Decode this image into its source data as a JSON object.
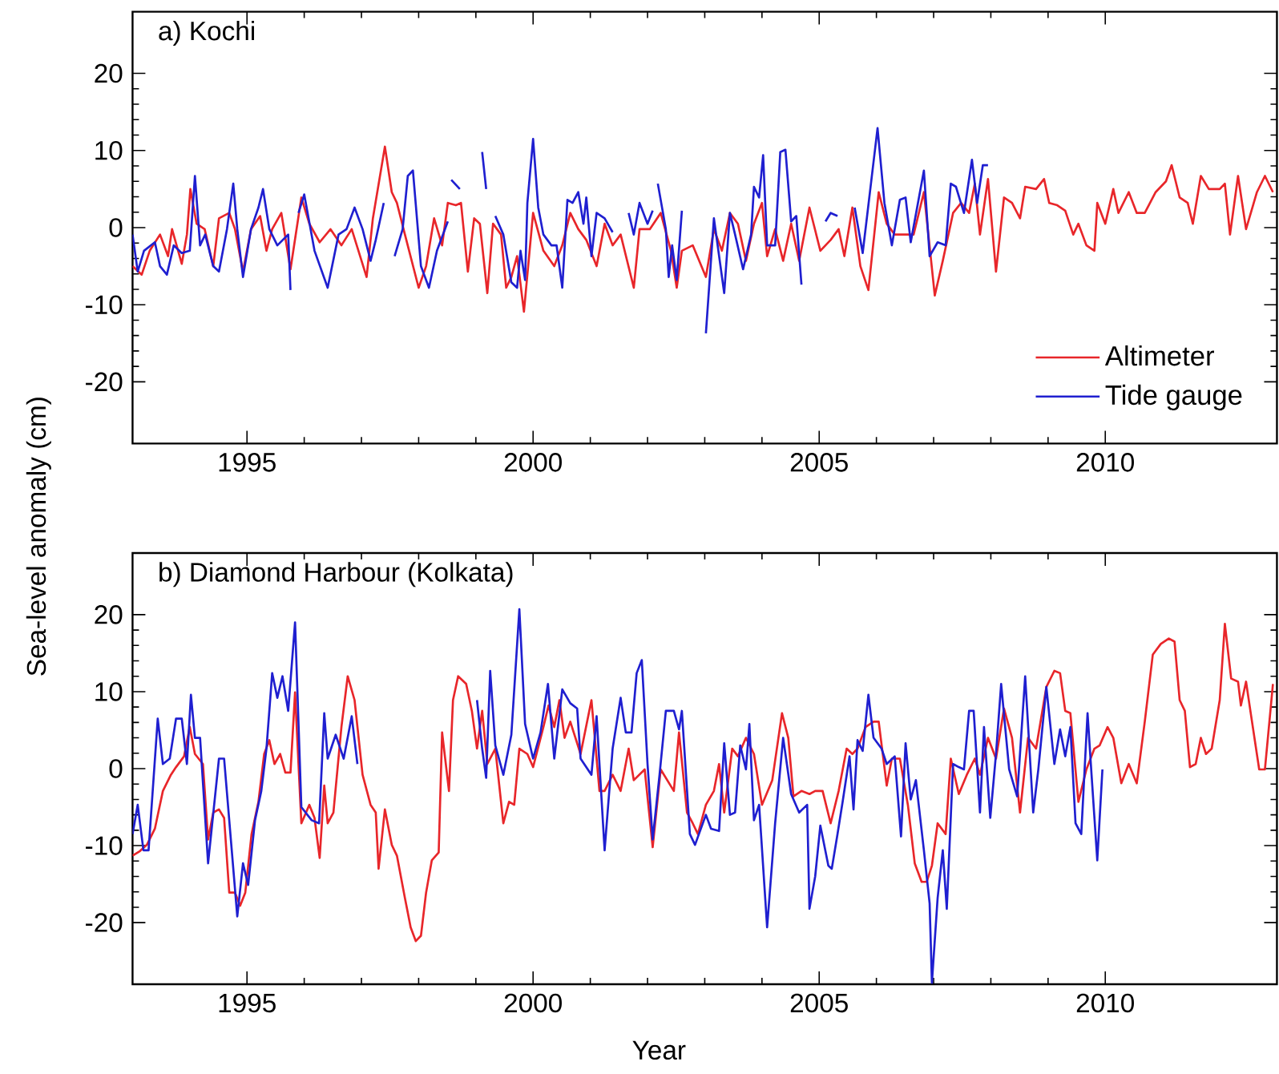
{
  "chart_data": [
    {
      "type": "line",
      "title": "a) Kochi",
      "ylabel": "Sea-level anomaly (cm)",
      "xlim": [
        1993,
        2013
      ],
      "ylim": [
        -28,
        28
      ],
      "xticks": [
        1995,
        2000,
        2005,
        2010
      ],
      "yticks": [
        -20,
        -10,
        0,
        10,
        20
      ],
      "legend": "bottom right",
      "series": [
        {
          "name": "Altimeter",
          "color": "#e8262a",
          "x": [
            1993.0,
            1993.16,
            1993.3,
            1993.48,
            1993.62,
            1993.69,
            1993.86,
            1993.95,
            1994.01,
            1994.12,
            1994.26,
            1994.41,
            1994.51,
            1994.69,
            1994.79,
            1994.93,
            1995.07,
            1995.23,
            1995.34,
            1995.44,
            1995.6,
            1995.76,
            1995.95,
            1996.09,
            1996.27,
            1996.46,
            1996.65,
            1996.83,
            1997.09,
            1997.2,
            1997.41,
            1997.53,
            1997.62,
            1997.76,
            1998.0,
            1998.13,
            1998.27,
            1998.41,
            1998.51,
            1998.65,
            1998.74,
            1998.86,
            1998.97,
            1999.07,
            1999.2,
            1999.3,
            1999.44,
            1999.53,
            1999.62,
            1999.72,
            1999.84,
            2000.0,
            2000.18,
            2000.37,
            2000.51,
            2000.65,
            2000.79,
            2000.93,
            2001.11,
            2001.25,
            2001.39,
            2001.53,
            2001.76,
            2001.86,
            2002.04,
            2002.23,
            2002.41,
            2002.51,
            2002.6,
            2002.79,
            2003.02,
            2003.16,
            2003.3,
            2003.44,
            2003.58,
            2003.72,
            2003.86,
            2004.0,
            2004.09,
            2004.23,
            2004.37,
            2004.51,
            2004.65,
            2004.83,
            2005.02,
            2005.2,
            2005.34,
            2005.44,
            2005.58,
            2005.72,
            2005.86,
            2006.04,
            2006.18,
            2006.32,
            2006.51,
            2006.65,
            2006.83,
            2007.02,
            2007.16,
            2007.34,
            2007.48,
            2007.62,
            2007.72,
            2007.81,
            2007.95,
            2008.09,
            2008.23,
            2008.37,
            2008.51,
            2008.6,
            2008.79,
            2008.93,
            2009.02,
            2009.16,
            2009.3,
            2009.44,
            2009.53,
            2009.67,
            2009.81,
            2009.86,
            2010.0,
            2010.14,
            2010.23,
            2010.41,
            2010.55,
            2010.69,
            2010.88,
            2011.06,
            2011.16,
            2011.3,
            2011.44,
            2011.53,
            2011.67,
            2011.81,
            2012.0,
            2012.09,
            2012.18,
            2012.32,
            2012.46,
            2012.65,
            2012.79,
            2012.93
          ],
          "values": [
            -5.0,
            -6.1,
            -3.0,
            -0.9,
            -3.7,
            -0.2,
            -4.7,
            -0.9,
            5.0,
            0.5,
            -0.2,
            -5.0,
            1.2,
            1.9,
            -0.2,
            -5.7,
            -0.2,
            1.5,
            -3.0,
            -0.2,
            1.9,
            -5.4,
            3.9,
            0.5,
            -1.9,
            -0.2,
            -2.3,
            -0.2,
            -6.4,
            1.2,
            10.5,
            4.6,
            3.2,
            -0.9,
            -7.8,
            -5.0,
            1.2,
            -2.3,
            3.2,
            2.9,
            3.2,
            -5.7,
            1.2,
            0.5,
            -8.5,
            0.5,
            -0.9,
            -7.8,
            -6.4,
            -3.7,
            -10.9,
            1.9,
            -3.0,
            -5.0,
            -2.3,
            1.9,
            -0.2,
            -1.6,
            -5.0,
            0.5,
            -2.3,
            -0.9,
            -7.8,
            -0.2,
            -0.2,
            1.9,
            -3.0,
            -7.8,
            -3.0,
            -2.3,
            -6.4,
            -0.2,
            -3.0,
            1.9,
            0.5,
            -4.3,
            0.5,
            3.2,
            -3.7,
            -0.2,
            -4.3,
            0.5,
            -4.3,
            2.6,
            -3.0,
            -1.6,
            -0.2,
            -3.7,
            2.6,
            -5.0,
            -8.1,
            4.6,
            0.5,
            -0.9,
            -0.9,
            -0.9,
            4.6,
            -8.8,
            -4.3,
            1.9,
            3.2,
            1.9,
            5.7,
            -0.9,
            6.3,
            -5.7,
            3.9,
            3.2,
            1.2,
            5.3,
            5.0,
            6.3,
            3.2,
            2.9,
            2.2,
            -0.9,
            0.5,
            -2.3,
            -3.0,
            3.2,
            0.5,
            5.0,
            1.9,
            4.6,
            1.9,
            1.9,
            4.6,
            6.0,
            8.1,
            3.9,
            3.2,
            0.5,
            6.7,
            5.0,
            5.0,
            5.7,
            -0.9,
            6.7,
            -0.2,
            4.6,
            6.7,
            4.6
          ]
        },
        {
          "name": "Tide gauge",
          "color": "#1f1fd0",
          "x": [
            1993.0,
            1993.09,
            1993.2,
            1993.39,
            1993.48,
            1993.6,
            1993.72,
            1993.86,
            1994.0,
            1994.09,
            1994.18,
            1994.27,
            1994.41,
            1994.51,
            1994.65,
            1994.76,
            1994.83,
            1994.93,
            1995.07,
            1995.2,
            1995.28,
            1995.39,
            1995.53,
            1995.72,
            1995.76,
            1995.85,
            1995.9,
            1996.0,
            1996.18,
            1996.41,
            1996.6,
            1996.74,
            1996.88,
            1997.02,
            1997.16,
            1997.25,
            1997.39,
            1997.5,
            1997.58,
            1997.72,
            1997.81,
            1997.9,
            1998.04,
            1998.18,
            1998.32,
            1998.51,
            1998.54,
            1998.57,
            1998.72,
            1998.8,
            1999.11,
            1999.18,
            1999.25,
            1999.34,
            1999.48,
            1999.62,
            1999.72,
            1999.78,
            1999.86,
            1999.9,
            2000.0,
            2000.09,
            2000.18,
            2000.32,
            2000.41,
            2000.51,
            2000.6,
            2000.69,
            2000.79,
            2000.88,
            2000.93,
            2001.02,
            2001.11,
            2001.25,
            2001.39,
            2001.5,
            2001.67,
            2001.76,
            2001.86,
            2002.0,
            2002.09,
            2002.15,
            2002.18,
            2002.32,
            2002.37,
            2002.43,
            2002.51,
            2002.6,
            2002.75,
            2003.02,
            2003.16,
            2003.34,
            2003.44,
            2003.53,
            2003.67,
            2003.81,
            2003.86,
            2003.95,
            2004.02,
            2004.09,
            2004.23,
            2004.32,
            2004.41,
            2004.51,
            2004.6,
            2004.69,
            2004.9,
            2005.11,
            2005.2,
            2005.32,
            2005.4,
            2005.62,
            2005.76,
            2006.02,
            2006.14,
            2006.27,
            2006.41,
            2006.51,
            2006.6,
            2006.83,
            2006.93,
            2007.07,
            2007.21,
            2007.3,
            2007.39,
            2007.53,
            2007.67,
            2007.76,
            2007.86,
            2007.95
          ],
          "values": [
            -0.9,
            -5.7,
            -3.0,
            -1.9,
            -5.0,
            -6.1,
            -2.3,
            -3.3,
            -3.0,
            6.7,
            -2.3,
            -0.9,
            -5.0,
            -5.7,
            -0.2,
            5.7,
            -0.2,
            -6.4,
            -0.2,
            2.6,
            5.0,
            -0.2,
            -2.3,
            -0.9,
            -8.1,
            null,
            1.9,
            4.3,
            -3.0,
            -7.8,
            -0.9,
            -0.2,
            2.6,
            -0.2,
            -4.3,
            -1.6,
            3.2,
            null,
            -3.7,
            -0.2,
            6.7,
            7.4,
            -5.0,
            -7.8,
            -3.0,
            0.8,
            null,
            6.2,
            5.0,
            null,
            9.8,
            5.0,
            null,
            1.5,
            -0.9,
            -7.1,
            -7.8,
            -3.0,
            -6.8,
            3.2,
            11.5,
            2.6,
            -0.9,
            -2.3,
            -2.3,
            -7.8,
            3.6,
            3.2,
            4.6,
            0.5,
            3.9,
            -3.7,
            1.9,
            1.2,
            -0.6,
            null,
            1.9,
            -0.9,
            3.2,
            0.5,
            2.2,
            null,
            5.7,
            -0.2,
            -6.4,
            -2.3,
            -6.8,
            2.2,
            null,
            -13.7,
            1.2,
            -8.5,
            1.9,
            -0.9,
            -5.4,
            -0.9,
            5.3,
            3.9,
            9.4,
            -2.3,
            -2.3,
            9.8,
            10.1,
            0.8,
            1.5,
            -7.4,
            null,
            0.8,
            1.9,
            1.5,
            null,
            2.6,
            -3.3,
            12.9,
            3.2,
            -2.3,
            3.6,
            3.9,
            -1.9,
            7.4,
            -3.7,
            -1.9,
            -2.3,
            5.7,
            5.3,
            1.9,
            8.8,
            3.2,
            8.1,
            8.1
          ]
        }
      ]
    },
    {
      "type": "line",
      "title": "b) Diamond Harbour (Kolkata)",
      "xlabel": "Year",
      "xlim": [
        1993,
        2013
      ],
      "ylim": [
        -28,
        28
      ],
      "xticks": [
        1995,
        2000,
        2005,
        2010
      ],
      "yticks": [
        -20,
        -10,
        0,
        10,
        20
      ],
      "series": [
        {
          "color": "#e8262a",
          "x": [
            1993.0,
            1993.13,
            1993.25,
            1993.39,
            1993.53,
            1993.67,
            1993.76,
            1993.9,
            1994.0,
            1994.09,
            1994.23,
            1994.32,
            1994.41,
            1994.51,
            1994.6,
            1994.69,
            1994.79,
            1994.88,
            1994.97,
            1995.08,
            1995.2,
            1995.3,
            1995.39,
            1995.48,
            1995.58,
            1995.67,
            1995.76,
            1995.84,
            1995.95,
            1996.09,
            1996.18,
            1996.27,
            1996.35,
            1996.41,
            1996.51,
            1996.65,
            1996.76,
            1996.88,
            1997.02,
            1997.16,
            1997.25,
            1997.3,
            1997.41,
            1997.53,
            1997.62,
            1997.76,
            1997.86,
            1997.95,
            1998.04,
            1998.13,
            1998.23,
            1998.35,
            1998.41,
            1998.53,
            1998.6,
            1998.69,
            1998.83,
            1998.93,
            1999.02,
            1999.11,
            1999.2,
            1999.34,
            1999.48,
            1999.58,
            1999.67,
            1999.76,
            1999.9,
            2000.0,
            2000.18,
            2000.27,
            2000.37,
            2000.46,
            2000.55,
            2000.65,
            2000.83,
            2001.02,
            2001.16,
            2001.25,
            2001.39,
            2001.53,
            2001.67,
            2001.76,
            2001.95,
            2002.09,
            2002.23,
            2002.46,
            2002.55,
            2002.69,
            2002.79,
            2002.88,
            2003.02,
            2003.16,
            2003.25,
            2003.34,
            2003.48,
            2003.58,
            2003.72,
            2003.86,
            2004.0,
            2004.18,
            2004.35,
            2004.46,
            2004.55,
            2004.69,
            2004.83,
            2004.93,
            2005.06,
            2005.2,
            2005.34,
            2005.48,
            2005.58,
            2005.67,
            2005.81,
            2005.95,
            2006.04,
            2006.18,
            2006.27,
            2006.41,
            2006.55,
            2006.67,
            2006.79,
            2006.88,
            2006.97,
            2007.07,
            2007.21,
            2007.3,
            2007.44,
            2007.58,
            2007.72,
            2007.81,
            2007.95,
            2008.09,
            2008.23,
            2008.37,
            2008.51,
            2008.65,
            2008.79,
            2008.97,
            2009.11,
            2009.21,
            2009.3,
            2009.39,
            2009.53,
            2009.67,
            2009.81,
            2009.9,
            2010.04,
            2010.14,
            2010.28,
            2010.41,
            2010.55,
            2010.69,
            2010.83,
            2010.97,
            2011.11,
            2011.21,
            2011.3,
            2011.39,
            2011.48,
            2011.58,
            2011.67,
            2011.76,
            2011.86,
            2012.0,
            2012.09,
            2012.2,
            2012.32,
            2012.37,
            2012.46,
            2012.55,
            2012.69,
            2012.79,
            2012.93
          ],
          "values": [
            -11.3,
            -10.7,
            -9.9,
            -7.8,
            -2.9,
            -0.8,
            0.2,
            1.6,
            5.4,
            1.9,
            0.6,
            -9.2,
            -5.7,
            -5.3,
            -6.4,
            -16.1,
            -16.1,
            -17.8,
            -16.1,
            -8.5,
            -4.3,
            1.9,
            3.7,
            0.6,
            1.9,
            -0.5,
            -0.5,
            9.9,
            -7.1,
            -4.7,
            -6.4,
            -11.6,
            -2.2,
            -7.1,
            -5.7,
            5.4,
            12.0,
            8.9,
            -0.8,
            -4.7,
            -5.7,
            -13.0,
            -5.3,
            -9.9,
            -11.3,
            -16.8,
            -20.6,
            -22.4,
            -21.7,
            -16.1,
            -11.9,
            -10.9,
            4.7,
            -2.9,
            8.9,
            12.0,
            11.0,
            7.5,
            2.6,
            7.5,
            0.6,
            2.6,
            -7.1,
            -4.3,
            -4.7,
            2.6,
            1.9,
            0.2,
            5.4,
            8.2,
            5.4,
            8.9,
            4.0,
            6.1,
            1.9,
            8.9,
            -2.9,
            -2.9,
            -0.8,
            -2.9,
            2.6,
            -1.5,
            -0.1,
            -10.2,
            -0.1,
            -2.9,
            4.7,
            -5.7,
            -7.1,
            -8.5,
            -4.7,
            -2.9,
            0.6,
            -5.7,
            2.6,
            1.6,
            4.0,
            1.9,
            -4.7,
            -1.5,
            7.2,
            4.0,
            -3.6,
            -2.9,
            -3.3,
            -2.9,
            -2.9,
            -7.1,
            -2.9,
            2.6,
            1.9,
            2.6,
            5.4,
            6.1,
            6.1,
            -2.2,
            1.3,
            1.3,
            -4.7,
            -12.3,
            -14.7,
            -14.7,
            -12.6,
            -7.1,
            -8.5,
            1.3,
            -3.3,
            -0.8,
            1.3,
            -0.8,
            4.0,
            1.3,
            7.8,
            4.0,
            -5.7,
            4.0,
            2.6,
            10.6,
            12.7,
            12.4,
            7.5,
            7.2,
            -4.3,
            -0.1,
            2.6,
            3.0,
            5.4,
            4.0,
            -1.9,
            0.6,
            -1.9,
            6.1,
            14.8,
            16.2,
            16.9,
            16.5,
            8.9,
            7.5,
            0.2,
            0.6,
            4.0,
            1.9,
            2.6,
            8.9,
            18.8,
            11.7,
            11.3,
            8.2,
            11.3,
            6.8,
            -0.1,
            -0.1,
            11.0
          ]
        },
        {
          "color": "#1f1fd0",
          "x": [
            1993.0,
            1993.09,
            1993.19,
            1993.28,
            1993.44,
            1993.53,
            1993.65,
            1993.76,
            1993.86,
            1993.95,
            1994.02,
            1994.09,
            1994.18,
            1994.32,
            1994.51,
            1994.6,
            1994.83,
            1994.93,
            1995.02,
            1995.14,
            1995.25,
            1995.34,
            1995.44,
            1995.53,
            1995.62,
            1995.72,
            1995.84,
            1995.95,
            1996.13,
            1996.26,
            1996.35,
            1996.41,
            1996.55,
            1996.69,
            1996.83,
            1996.93,
            1997.0,
            1999.02,
            1999.11,
            1999.18,
            1999.25,
            1999.34,
            1999.48,
            1999.62,
            1999.76,
            1999.86,
            2000.0,
            2000.13,
            2000.26,
            2000.37,
            2000.51,
            2000.65,
            2000.77,
            2000.83,
            2001.02,
            2001.11,
            2001.25,
            2001.39,
            2001.53,
            2001.62,
            2001.72,
            2001.81,
            2001.9,
            2002.0,
            2002.09,
            2002.21,
            2002.32,
            2002.46,
            2002.55,
            2002.6,
            2002.74,
            2002.83,
            2003.02,
            2003.11,
            2003.25,
            2003.34,
            2003.44,
            2003.53,
            2003.62,
            2003.72,
            2003.78,
            2003.86,
            2003.95,
            2004.09,
            2004.23,
            2004.37,
            2004.51,
            2004.65,
            2004.79,
            2004.83,
            2004.93,
            2005.02,
            2005.16,
            2005.22,
            2005.32,
            2005.41,
            2005.53,
            2005.6,
            2005.67,
            2005.76,
            2005.86,
            2005.95,
            2006.09,
            2006.18,
            2006.32,
            2006.43,
            2006.51,
            2006.6,
            2006.69,
            2006.83,
            2006.93,
            2006.97,
            2007.07,
            2007.16,
            2007.23,
            2007.34,
            2007.44,
            2007.53,
            2007.62,
            2007.7,
            2007.81,
            2007.88,
            2007.99,
            2008.09,
            2008.18,
            2008.32,
            2008.46,
            2008.6,
            2008.74,
            2008.83,
            2008.97,
            2009.11,
            2009.21,
            2009.3,
            2009.39,
            2009.48,
            2009.58,
            2009.69,
            2009.76,
            2009.86,
            2009.95
          ],
          "values": [
            -8.5,
            -4.7,
            -10.6,
            -10.6,
            6.5,
            0.6,
            1.3,
            6.5,
            6.5,
            0.6,
            9.6,
            4.0,
            4.0,
            -12.3,
            1.3,
            1.3,
            -19.2,
            -12.3,
            -15.1,
            -6.7,
            -2.9,
            2.6,
            12.4,
            9.2,
            12.0,
            7.5,
            19.0,
            -5.0,
            -6.7,
            -7.1,
            7.2,
            1.3,
            4.4,
            1.3,
            6.8,
            0.6,
            null,
            8.9,
            2.6,
            -1.2,
            12.7,
            3.0,
            -0.8,
            4.4,
            20.7,
            5.8,
            1.3,
            4.7,
            11.0,
            1.3,
            10.3,
            8.5,
            7.8,
            1.3,
            -0.8,
            6.8,
            -10.6,
            2.6,
            9.2,
            4.7,
            4.7,
            12.4,
            14.1,
            0.6,
            -9.2,
            -0.8,
            7.5,
            7.5,
            5.1,
            7.5,
            -8.5,
            -9.9,
            -6.0,
            -7.8,
            -8.1,
            3.3,
            -6.0,
            -5.7,
            3.0,
            -0.1,
            5.8,
            -6.7,
            -4.7,
            -20.6,
            -7.1,
            4.0,
            -3.3,
            -5.7,
            -4.7,
            -18.2,
            -14.0,
            -7.4,
            -12.6,
            -13.0,
            -8.5,
            -4.3,
            1.6,
            -5.3,
            3.7,
            2.3,
            9.6,
            4.0,
            2.6,
            0.6,
            1.6,
            -8.8,
            3.3,
            -4.0,
            -1.5,
            -10.6,
            -17.5,
            -27.8,
            -16.8,
            -10.6,
            -18.2,
            0.6,
            0.2,
            -0.1,
            7.5,
            7.5,
            -5.7,
            5.4,
            -6.4,
            1.9,
            11.0,
            -0.1,
            -3.6,
            12.0,
            -5.7,
            -0.1,
            10.6,
            0.6,
            5.1,
            1.6,
            5.4,
            -7.1,
            -8.5,
            7.2,
            -0.8,
            -11.9,
            -0.1
          ]
        }
      ]
    }
  ]
}
